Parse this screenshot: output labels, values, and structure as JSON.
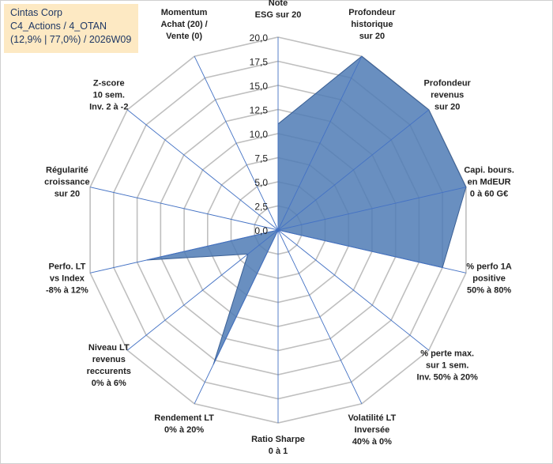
{
  "title_box": {
    "line1": "Cintas Corp",
    "line2": "C4_Actions / 4_OTAN",
    "line3": "(12,9% | 77,0%) / 2026W09"
  },
  "colors": {
    "fill": "#4f7bb5",
    "stroke": "#3a5f94",
    "grid": "#bfbfbf",
    "spoke": "#4472c4",
    "title_bg": "#fde9c3"
  },
  "chart_data": {
    "type": "radar",
    "grid": true,
    "rmax": 20,
    "ticks": [
      "0,0",
      "2,5",
      "5,0",
      "7,5",
      "10,0",
      "12,5",
      "15,0",
      "17,5",
      "20,0"
    ],
    "axes": [
      [
        "Note",
        "ESG sur 20"
      ],
      [
        "Profondeur",
        "historique",
        "sur 20"
      ],
      [
        "Profondeur",
        "revenus",
        "sur 20"
      ],
      [
        "Capi. bours.",
        "en MdEUR",
        "0 à 60 G€"
      ],
      [
        "% perfo 1A",
        "positive",
        "50% à 80%"
      ],
      [
        "% perte max.",
        "sur 1 sem.",
        "Inv. 50% à 20%"
      ],
      [
        "Volatilité LT",
        "Inversée",
        "40% à 0%"
      ],
      [
        "Ratio Sharpe",
        "0 à 1"
      ],
      [
        "Rendement LT",
        "0% à 20%"
      ],
      [
        "Niveau LT",
        "revenus",
        "reccurents",
        "0% à 6%"
      ],
      [
        "Perfo. LT",
        "vs Index",
        "-8% à 12%"
      ],
      [
        "Régularité",
        "croissance",
        "sur 20"
      ],
      [
        "Z-score",
        "10 sem.",
        "Inv. 2 à -2"
      ],
      [
        "Momentum",
        "Achat (20) /",
        "Vente (0)"
      ]
    ],
    "series": [
      {
        "values": [
          11,
          20,
          20,
          20,
          17.5,
          0,
          0,
          0,
          15.5,
          4,
          14,
          0,
          0,
          0
        ]
      }
    ]
  }
}
